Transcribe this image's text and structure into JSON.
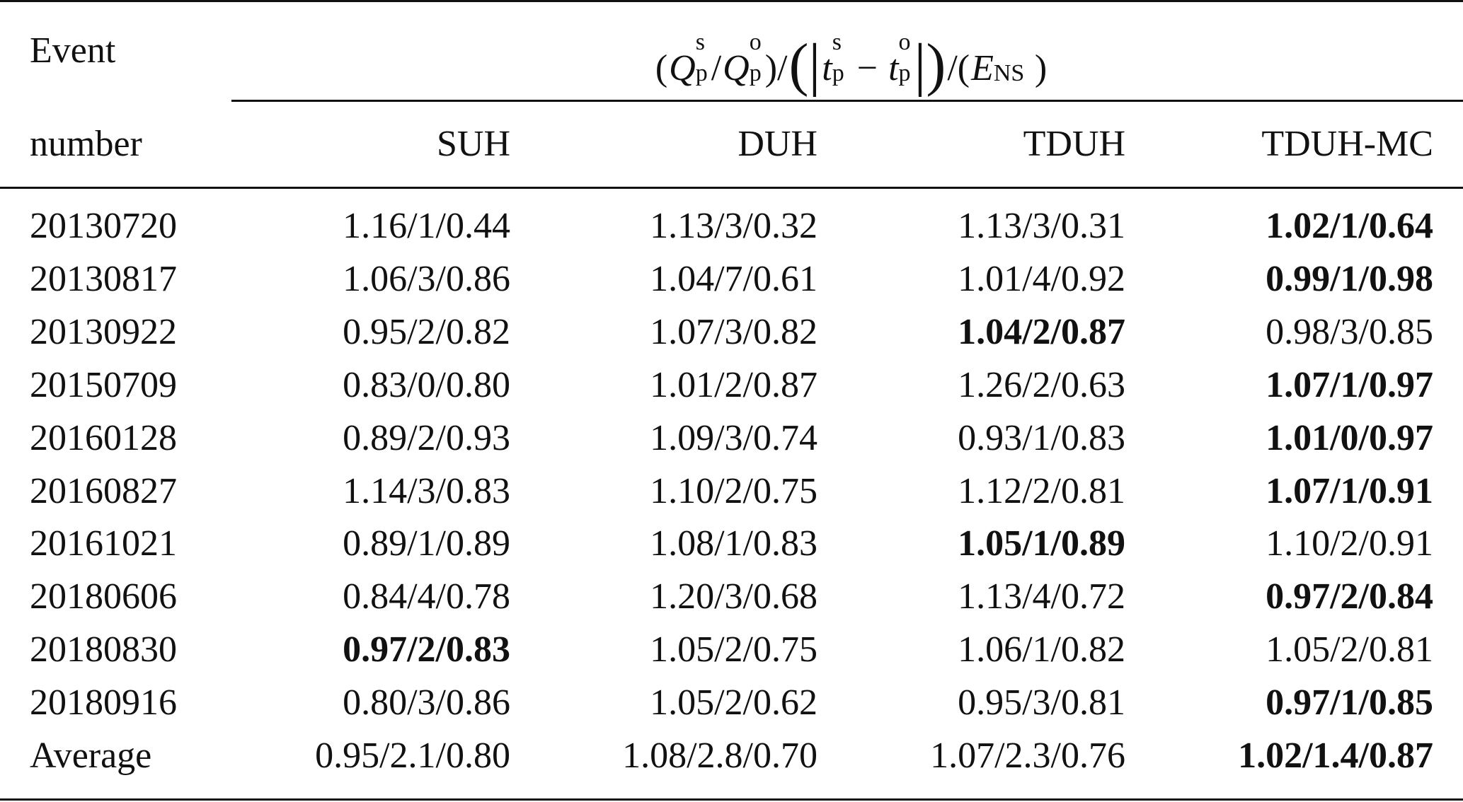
{
  "header": {
    "event": [
      "Event",
      "number"
    ],
    "group": [
      {
        "text": "("
      },
      {
        "text": "Q",
        "italic": true,
        "sup": "s",
        "sub": "p"
      },
      {
        "text": "/"
      },
      {
        "text": "Q",
        "italic": true,
        "sup": "o",
        "sub": "p"
      },
      {
        "text": ")/"
      },
      {
        "text": "(|",
        "large": true
      },
      {
        "text": "t",
        "italic": true,
        "sup": "s",
        "sub": "p"
      },
      {
        "text": " − "
      },
      {
        "text": "t",
        "italic": true,
        "sup": "o",
        "sub": "p"
      },
      {
        "text": "|)",
        "large": true
      },
      {
        "text": "/("
      },
      {
        "text": "E",
        "italic": true,
        "sub": "NS"
      },
      {
        "text": ")"
      }
    ],
    "columns": [
      "SUH",
      "DUH",
      "TDUH",
      "TDUH-MC"
    ]
  },
  "rows": [
    {
      "event": "20130720",
      "cells": [
        {
          "text": "1.16/1/0.44",
          "bold": false
        },
        {
          "text": "1.13/3/0.32",
          "bold": false
        },
        {
          "text": "1.13/3/0.31",
          "bold": false
        },
        {
          "text": "1.02/1/0.64",
          "bold": true
        }
      ]
    },
    {
      "event": "20130817",
      "cells": [
        {
          "text": "1.06/3/0.86",
          "bold": false
        },
        {
          "text": "1.04/7/0.61",
          "bold": false
        },
        {
          "text": "1.01/4/0.92",
          "bold": false
        },
        {
          "text": "0.99/1/0.98",
          "bold": true
        }
      ]
    },
    {
      "event": "20130922",
      "cells": [
        {
          "text": "0.95/2/0.82",
          "bold": false
        },
        {
          "text": "1.07/3/0.82",
          "bold": false
        },
        {
          "text": "1.04/2/0.87",
          "bold": true
        },
        {
          "text": "0.98/3/0.85",
          "bold": false
        }
      ]
    },
    {
      "event": "20150709",
      "cells": [
        {
          "text": "0.83/0/0.80",
          "bold": false
        },
        {
          "text": "1.01/2/0.87",
          "bold": false
        },
        {
          "text": "1.26/2/0.63",
          "bold": false
        },
        {
          "text": "1.07/1/0.97",
          "bold": true
        }
      ]
    },
    {
      "event": "20160128",
      "cells": [
        {
          "text": "0.89/2/0.93",
          "bold": false
        },
        {
          "text": "1.09/3/0.74",
          "bold": false
        },
        {
          "text": "0.93/1/0.83",
          "bold": false
        },
        {
          "text": "1.01/0/0.97",
          "bold": true
        }
      ]
    },
    {
      "event": "20160827",
      "cells": [
        {
          "text": "1.14/3/0.83",
          "bold": false
        },
        {
          "text": "1.10/2/0.75",
          "bold": false
        },
        {
          "text": "1.12/2/0.81",
          "bold": false
        },
        {
          "text": "1.07/1/0.91",
          "bold": true
        }
      ]
    },
    {
      "event": "20161021",
      "cells": [
        {
          "text": "0.89/1/0.89",
          "bold": false
        },
        {
          "text": "1.08/1/0.83",
          "bold": false
        },
        {
          "text": "1.05/1/0.89",
          "bold": true
        },
        {
          "text": "1.10/2/0.91",
          "bold": false
        }
      ]
    },
    {
      "event": "20180606",
      "cells": [
        {
          "text": "0.84/4/0.78",
          "bold": false
        },
        {
          "text": "1.20/3/0.68",
          "bold": false
        },
        {
          "text": "1.13/4/0.72",
          "bold": false
        },
        {
          "text": "0.97/2/0.84",
          "bold": true
        }
      ]
    },
    {
      "event": "20180830",
      "cells": [
        {
          "text": "0.97/2/0.83",
          "bold": true
        },
        {
          "text": "1.05/2/0.75",
          "bold": false
        },
        {
          "text": "1.06/1/0.82",
          "bold": false
        },
        {
          "text": "1.05/2/0.81",
          "bold": false
        }
      ]
    },
    {
      "event": "20180916",
      "cells": [
        {
          "text": "0.80/3/0.86",
          "bold": false
        },
        {
          "text": "1.05/2/0.62",
          "bold": false
        },
        {
          "text": "0.95/3/0.81",
          "bold": false
        },
        {
          "text": "0.97/1/0.85",
          "bold": true
        }
      ]
    },
    {
      "event": "Average",
      "cells": [
        {
          "text": "0.95/2.1/0.80",
          "bold": false
        },
        {
          "text": "1.08/2.8/0.70",
          "bold": false
        },
        {
          "text": "1.07/2.3/0.76",
          "bold": false
        },
        {
          "text": "1.02/1.4/0.87",
          "bold": true
        }
      ]
    }
  ]
}
